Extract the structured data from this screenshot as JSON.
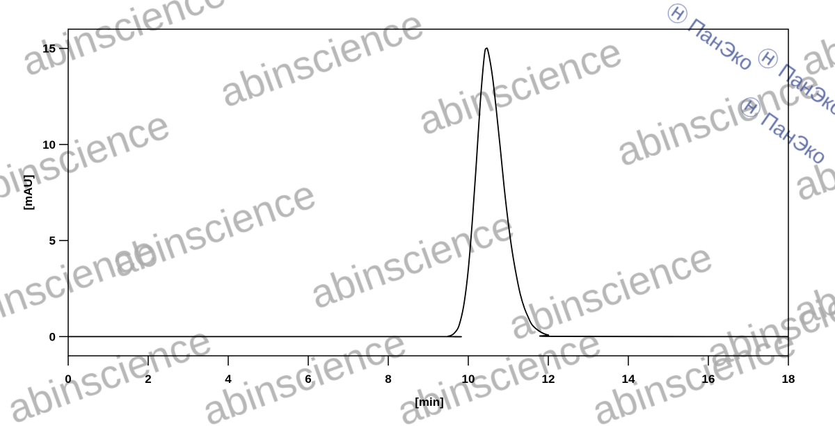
{
  "chart_data": {
    "type": "line",
    "title": "",
    "xlabel": "[min]",
    "ylabel": "[mAU]",
    "xlim": [
      0,
      18
    ],
    "ylim": [
      -1,
      16
    ],
    "xticks": [
      0,
      2,
      4,
      6,
      8,
      10,
      12,
      14,
      16,
      18
    ],
    "yticks": [
      0,
      5,
      10,
      15
    ],
    "grid": false,
    "series": [
      {
        "color": "#000000",
        "x": [
          0,
          9.0,
          9.5,
          9.7,
          9.8,
          9.9,
          10.0,
          10.1,
          10.2,
          10.3,
          10.4,
          10.45,
          10.5,
          10.6,
          10.7,
          10.8,
          10.9,
          11.0,
          11.1,
          11.2,
          11.3,
          11.4,
          11.5,
          11.6,
          11.8,
          12.0,
          12.3,
          18
        ],
        "y": [
          0,
          0,
          0.02,
          0.3,
          0.8,
          1.8,
          3.5,
          6.0,
          9.0,
          12.2,
          14.6,
          15.0,
          14.8,
          13.6,
          11.8,
          9.8,
          7.7,
          5.9,
          4.4,
          3.2,
          2.2,
          1.5,
          1.0,
          0.6,
          0.25,
          0.08,
          0.01,
          0
        ]
      }
    ]
  },
  "watermarks": {
    "main": "abinscience",
    "secondary": "ПанЭко"
  }
}
